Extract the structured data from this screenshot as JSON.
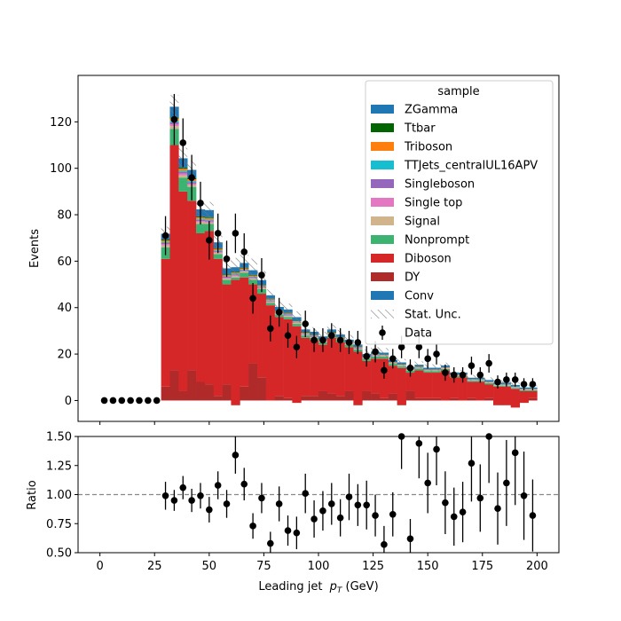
{
  "chart_data": [
    {
      "type": "bar",
      "stacked": true,
      "ylabel": "Events",
      "xlim": [
        -10,
        210
      ],
      "ylim": [
        -9,
        140
      ],
      "xticks": [
        0,
        25,
        50,
        75,
        100,
        125,
        150,
        175,
        200
      ],
      "yticks": [
        0,
        20,
        40,
        60,
        80,
        100,
        120
      ],
      "x": [
        30,
        34,
        38,
        42,
        46,
        50,
        54,
        58,
        62,
        66,
        70,
        74,
        78,
        82,
        86,
        90,
        94,
        98,
        102,
        106,
        110,
        114,
        118,
        122,
        126,
        130,
        134,
        138,
        142,
        146,
        150,
        154,
        158,
        162,
        166,
        170,
        174,
        178,
        182,
        186,
        190,
        194,
        198
      ],
      "bin_width": 4,
      "legend": {
        "title": "sample",
        "placement": "top-right"
      },
      "series": [
        {
          "name": "DY",
          "color": "#b02a2a",
          "values": [
            6,
            13,
            4,
            13,
            8,
            7,
            2,
            7,
            -2,
            6,
            16,
            10,
            0,
            2,
            1,
            -1,
            2,
            2,
            4,
            3,
            2,
            4,
            -2,
            4,
            3,
            1,
            3,
            -2,
            4,
            1,
            1,
            1,
            0,
            1,
            0,
            1,
            0,
            1,
            -2,
            -2,
            -3,
            -1,
            1
          ]
        },
        {
          "name": "Diboson",
          "color": "#d62728",
          "values": [
            55,
            97,
            86,
            73,
            64,
            66,
            59,
            43,
            54,
            47,
            34,
            36,
            41,
            34,
            34,
            33,
            25,
            24,
            20,
            24,
            23,
            19,
            23,
            13,
            15,
            17,
            12,
            16,
            8,
            12,
            11,
            11,
            13,
            9,
            10,
            7,
            8,
            6,
            8,
            8,
            8,
            5,
            3
          ]
        },
        {
          "name": "Nonprompt",
          "color": "#3cb371",
          "values": [
            5,
            7,
            6,
            6,
            4,
            3,
            2,
            2,
            1,
            2,
            2,
            2,
            1,
            1,
            1,
            1,
            1,
            1,
            1,
            1,
            1,
            1,
            1,
            1,
            1,
            1,
            0.8,
            0.8,
            0.8,
            0.8,
            0.6,
            0.6,
            0.6,
            0.6,
            0.5,
            0.5,
            0.5,
            0.5,
            0.4,
            0.4,
            0.4,
            0.4,
            0.4
          ]
        },
        {
          "name": "Signal",
          "color": "#d2b48c",
          "values": [
            0.8,
            1.2,
            1,
            0.8,
            0.8,
            0.6,
            0.6,
            0.5,
            0.5,
            0.5,
            0.5,
            0.4,
            0.4,
            0.4,
            0.4,
            0.3,
            0.3,
            0.3,
            0.3,
            0.3,
            0.3,
            0.3,
            0.3,
            0.2,
            0.2,
            0.2,
            0.2,
            0.2,
            0.2,
            0.2,
            0.2,
            0.2,
            0.2,
            0.2,
            0.2,
            0.2,
            0.2,
            0.2,
            0.2,
            0.2,
            0.2,
            0.2,
            0.2
          ]
        },
        {
          "name": "Single top",
          "color": "#e377c2",
          "values": [
            0.5,
            0.8,
            0.7,
            0.6,
            0.5,
            0.5,
            0.4,
            0.4,
            0.4,
            0.3,
            0.3,
            0.3,
            0.3,
            0.3,
            0.3,
            0.2,
            0.2,
            0.2,
            0.2,
            0.2,
            0.2,
            0.2,
            0.2,
            0.2,
            0.2,
            0.1,
            0.1,
            0.1,
            0.1,
            0.1,
            0.1,
            0.1,
            0.1,
            0.1,
            0.1,
            0.1,
            0.1,
            0.1,
            0.1,
            0.1,
            0.1,
            0.1,
            0.1
          ]
        },
        {
          "name": "Singleboson",
          "color": "#9467bd",
          "values": [
            0.5,
            0.8,
            0.7,
            0.6,
            0.5,
            0.5,
            0.4,
            0.4,
            0.4,
            0.3,
            0.3,
            0.3,
            0.3,
            0.3,
            0.3,
            0.2,
            0.2,
            0.2,
            0.2,
            0.2,
            0.2,
            0.2,
            0.2,
            0.2,
            0.2,
            0.1,
            0.1,
            0.1,
            0.1,
            0.1,
            0.1,
            0.1,
            0.1,
            0.1,
            0.1,
            0.1,
            0.1,
            0.1,
            0.1,
            0.1,
            0.1,
            0.1,
            0.1
          ]
        },
        {
          "name": "TTJets_centralUL16APV",
          "color": "#17becf",
          "values": [
            0.4,
            0.6,
            0.5,
            0.5,
            0.4,
            0.4,
            0.3,
            0.3,
            0.3,
            0.3,
            0.3,
            0.2,
            0.2,
            0.2,
            0.2,
            0.2,
            0.2,
            0.2,
            0.2,
            0.2,
            0.2,
            0.1,
            0.1,
            0.1,
            0.1,
            0.1,
            0.1,
            0.1,
            0.1,
            0.1,
            0.1,
            0.1,
            0.1,
            0.1,
            0.1,
            0.1,
            0.1,
            0.1,
            0.1,
            0.1,
            0.1,
            0.1,
            0.1
          ]
        },
        {
          "name": "Triboson",
          "color": "#ff7f0e",
          "values": [
            0.7,
            1,
            0.9,
            0.8,
            0.7,
            0.6,
            0.6,
            0.5,
            0.5,
            0.5,
            0.4,
            0.4,
            0.4,
            0.4,
            0.3,
            0.3,
            0.3,
            0.3,
            0.3,
            0.3,
            0.3,
            0.3,
            0.2,
            0.2,
            0.2,
            0.2,
            0.2,
            0.2,
            0.2,
            0.2,
            0.2,
            0.2,
            0.2,
            0.2,
            0.2,
            0.1,
            0.1,
            0.1,
            0.1,
            0.1,
            0.1,
            0.1,
            0.1
          ]
        },
        {
          "name": "Ttbar",
          "color": "#006400",
          "values": [
            0.4,
            0.6,
            0.5,
            0.5,
            0.4,
            0.4,
            0.3,
            0.3,
            0.3,
            0.3,
            0.3,
            0.2,
            0.2,
            0.2,
            0.2,
            0.2,
            0.2,
            0.2,
            0.2,
            0.2,
            0.2,
            0.1,
            0.1,
            0.1,
            0.1,
            0.1,
            0.1,
            0.1,
            0.1,
            0.1,
            0.1,
            0.1,
            0.1,
            0.1,
            0.1,
            0.1,
            0.1,
            0.1,
            0.1,
            0.1,
            0.1,
            0.1,
            0.1
          ]
        },
        {
          "name": "ZGamma",
          "color": "#1f77b4",
          "values": [
            2.5,
            4.5,
            4,
            3.5,
            3,
            3,
            2.5,
            2.5,
            2,
            2,
            2,
            2,
            1.5,
            1.5,
            1.5,
            1.5,
            1.2,
            1.2,
            1.2,
            1.2,
            1,
            1,
            1,
            1,
            1,
            0.8,
            0.8,
            0.8,
            0.8,
            0.8,
            0.7,
            0.7,
            0.7,
            0.7,
            0.7,
            0.6,
            0.6,
            0.6,
            0.6,
            0.6,
            0.6,
            0.5,
            0.5
          ]
        }
      ],
      "legend_extra": [
        {
          "name": "Conv",
          "color": "#1f77b4"
        },
        {
          "name": "Stat. Unc.",
          "style": "hatch"
        },
        {
          "name": "Data",
          "style": "errorbar"
        }
      ],
      "data_points": {
        "x": [
          2,
          6,
          10,
          14,
          18,
          22,
          26,
          30,
          34,
          38,
          42,
          46,
          50,
          54,
          58,
          62,
          66,
          70,
          74,
          78,
          82,
          86,
          90,
          94,
          98,
          102,
          106,
          110,
          114,
          118,
          122,
          126,
          130,
          134,
          138,
          142,
          146,
          150,
          154,
          158,
          162,
          166,
          170,
          174,
          178,
          182,
          186,
          190,
          194,
          198
        ],
        "y": [
          0,
          0,
          0,
          0,
          0,
          0,
          0,
          71,
          121,
          111,
          96,
          85,
          69,
          72,
          61,
          72,
          64,
          44,
          54,
          31,
          38,
          28,
          23,
          33,
          26,
          26,
          28,
          26,
          25,
          25,
          19,
          21,
          13,
          18,
          23,
          14,
          23,
          18,
          20,
          12,
          11,
          11,
          15,
          11,
          16,
          8,
          9,
          9,
          7,
          7
        ],
        "yerr": [
          0,
          0,
          0,
          0,
          0,
          0,
          0,
          8.4,
          11,
          10.5,
          9.8,
          9.2,
          8.3,
          8.5,
          7.8,
          8.5,
          8,
          6.6,
          7.3,
          5.6,
          6.2,
          5.3,
          4.8,
          5.7,
          5.1,
          5.1,
          5.3,
          5.1,
          5,
          5,
          4.4,
          4.6,
          3.6,
          4.2,
          4.8,
          3.7,
          4.8,
          4.2,
          4.5,
          3.5,
          3.3,
          3.3,
          3.9,
          3.3,
          4,
          2.8,
          3,
          3,
          2.6,
          2.6
        ]
      },
      "stat_unc": [
        3,
        5,
        4.5,
        4,
        4,
        3.5,
        3.5,
        3.5,
        4,
        3.5,
        5,
        4,
        2.5,
        2.5,
        2.5,
        2.5,
        2,
        2,
        2,
        2,
        2,
        2,
        2,
        2,
        2,
        2,
        1.5,
        1.5,
        1.5,
        1.5,
        1.5,
        1.5,
        1.2,
        1.2,
        1.2,
        1.2,
        1.2,
        1.2,
        1,
        1,
        1,
        1,
        1
      ]
    },
    {
      "type": "scatter",
      "xlabel": "Leading jet  p_T (GeV)",
      "xlabel_main": "Leading jet ",
      "xlabel_sym": "p",
      "xlabel_sub": "T",
      "xlabel_unit": " (GeV)",
      "ylabel": "Ratio",
      "xlim": [
        -10,
        210
      ],
      "ylim": [
        0.5,
        1.5
      ],
      "xticks": [
        0,
        25,
        50,
        75,
        100,
        125,
        150,
        175,
        200
      ],
      "yticks": [
        "0.50",
        "0.75",
        "1.00",
        "1.25",
        "1.50"
      ],
      "reference_line": 1.0,
      "x": [
        30,
        34,
        38,
        42,
        46,
        50,
        54,
        58,
        62,
        66,
        70,
        74,
        78,
        82,
        86,
        90,
        94,
        98,
        102,
        106,
        110,
        114,
        118,
        122,
        126,
        130,
        134,
        138,
        142,
        146,
        150,
        154,
        158,
        162,
        166,
        170,
        174,
        178,
        182,
        186,
        190,
        194,
        198
      ],
      "y": [
        0.99,
        0.95,
        1.06,
        0.95,
        0.99,
        0.87,
        1.08,
        0.92,
        1.34,
        1.09,
        0.73,
        0.97,
        0.58,
        0.92,
        0.69,
        0.67,
        1.01,
        0.79,
        0.86,
        0.92,
        0.8,
        0.98,
        0.91,
        0.91,
        0.82,
        0.57,
        0.83,
        1.5,
        0.62,
        1.44,
        1.1,
        1.39,
        0.93,
        0.81,
        0.85,
        1.27,
        0.97,
        1.5,
        0.88,
        1.1,
        1.36,
        0.99,
        0.82
      ],
      "yerr": [
        0.12,
        0.09,
        0.1,
        0.1,
        0.11,
        0.11,
        0.12,
        0.12,
        0.16,
        0.14,
        0.11,
        0.13,
        0.1,
        0.15,
        0.13,
        0.14,
        0.17,
        0.16,
        0.17,
        0.18,
        0.16,
        0.2,
        0.18,
        0.21,
        0.18,
        0.16,
        0.19,
        0.28,
        0.17,
        0.3,
        0.26,
        0.31,
        0.27,
        0.25,
        0.26,
        0.33,
        0.29,
        0.4,
        0.31,
        0.37,
        0.45,
        0.38,
        0.31
      ]
    }
  ]
}
